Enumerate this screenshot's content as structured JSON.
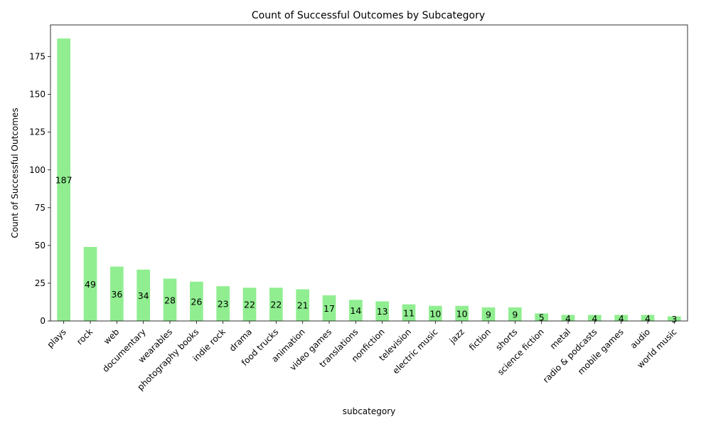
{
  "chart_data": {
    "type": "bar",
    "title": "Count of Successful Outcomes by Subcategory",
    "xlabel": "subcategory",
    "ylabel": "Count of Successful Outcomes",
    "ylim": [
      0,
      196
    ],
    "yticks": [
      0,
      25,
      50,
      75,
      100,
      125,
      150,
      175
    ],
    "grid": false,
    "bar_color": "#90ee90",
    "categories": [
      "plays",
      "rock",
      "web",
      "documentary",
      "wearables",
      "photography books",
      "indie rock",
      "drama",
      "food trucks",
      "animation",
      "video games",
      "translations",
      "nonfiction",
      "television",
      "electric music",
      "jazz",
      "fiction",
      "shorts",
      "science fiction",
      "metal",
      "radio & podcasts",
      "mobile games",
      "audio",
      "world music"
    ],
    "values": [
      187,
      49,
      36,
      34,
      28,
      26,
      23,
      22,
      22,
      21,
      17,
      14,
      13,
      11,
      10,
      10,
      9,
      9,
      5,
      4,
      4,
      4,
      4,
      3
    ],
    "value_labels": [
      "187",
      "49",
      "36",
      "34",
      "28",
      "26",
      "23",
      "22",
      "22",
      "21",
      "17",
      "14",
      "13",
      "11",
      "10",
      "10",
      "9",
      "9",
      "5",
      "4",
      "4",
      "4",
      "4",
      "3"
    ]
  }
}
